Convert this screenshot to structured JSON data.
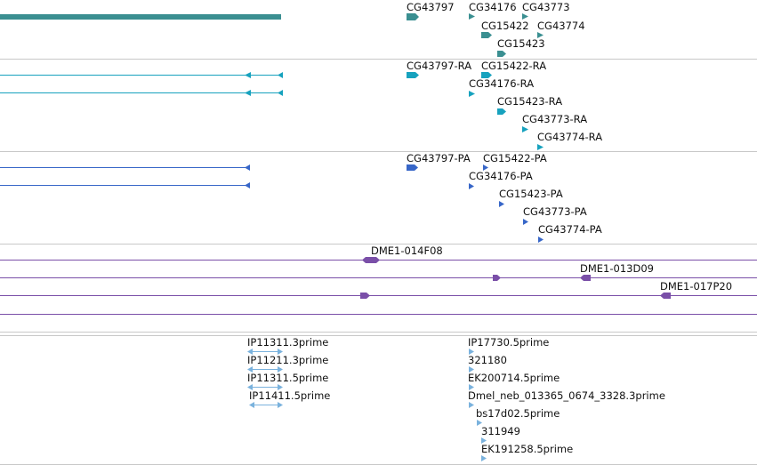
{
  "colors": {
    "gene": "#3a8f91",
    "mrna": "#17a2be",
    "protein": "#3766c8",
    "clone": "#7a4fa8",
    "est": "#7ab2dd",
    "separator": "#c8c8c8"
  },
  "tracks": {
    "gene": {
      "labels": [
        "CG43797",
        "CG34176",
        "CG43773",
        "CG15422",
        "CG43774",
        "CG15423"
      ]
    },
    "mrna": {
      "labels": [
        "CG43797-RA",
        "CG15422-RA",
        "CG34176-RA",
        "CG15423-RA",
        "CG43773-RA",
        "CG43774-RA"
      ]
    },
    "protein": {
      "labels": [
        "CG43797-PA",
        "CG15422-PA",
        "CG34176-PA",
        "CG15423-PA",
        "CG43773-PA",
        "CG43774-PA"
      ]
    },
    "clone": {
      "labels": [
        "DME1-014F08",
        "DME1-013D09",
        "DME1-017P20"
      ]
    },
    "est": {
      "labels": [
        "IP11311.3prime",
        "IP11211.3prime",
        "IP11311.5prime",
        "IP11411.5prime",
        "IP17730.5prime",
        "321180",
        "EK200714.5prime",
        "Dmel_neb_013365_0674_3328.3prime",
        "bs17d02.5prime",
        "311949",
        "EK191258.5prime"
      ]
    }
  }
}
